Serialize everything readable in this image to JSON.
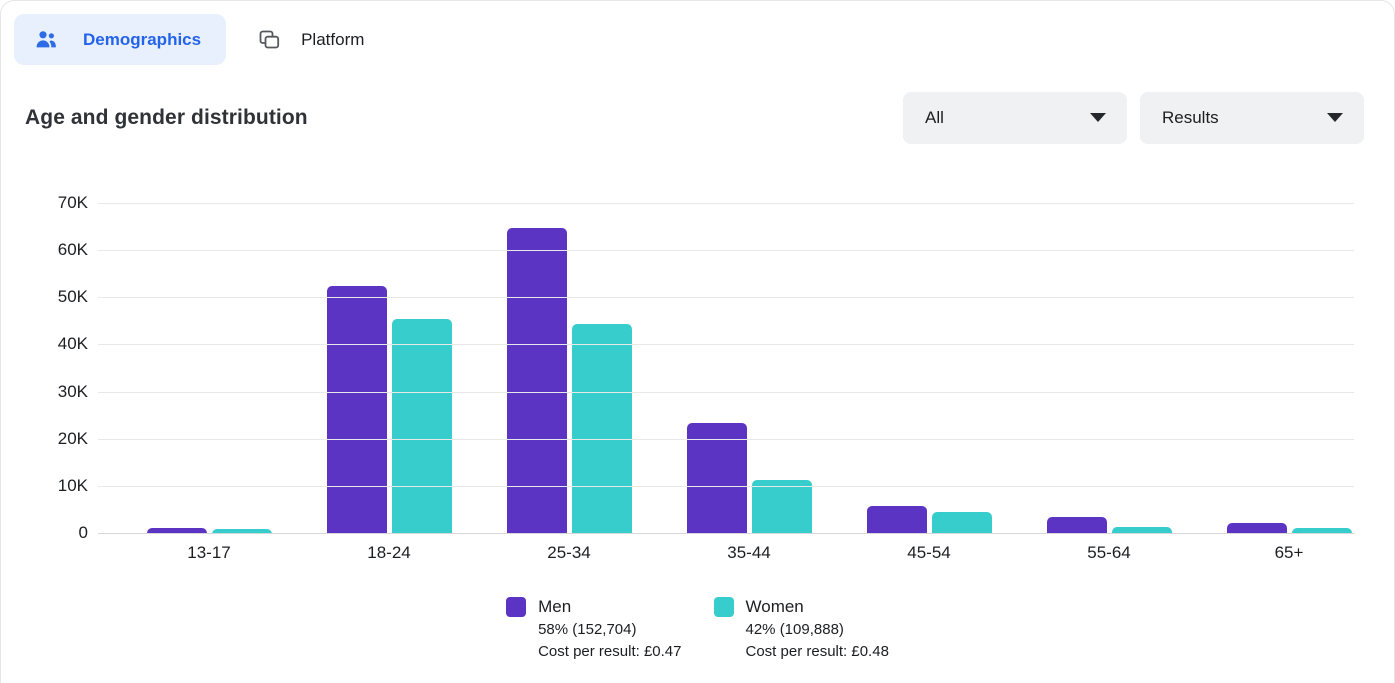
{
  "tabs": [
    {
      "label": "Demographics",
      "active": true
    },
    {
      "label": "Platform",
      "active": false
    }
  ],
  "header": {
    "title": "Age and gender distribution"
  },
  "filters": [
    {
      "value": "All"
    },
    {
      "value": "Results"
    }
  ],
  "chart_data": {
    "type": "bar",
    "categories": [
      "13-17",
      "18-24",
      "25-34",
      "35-44",
      "45-54",
      "55-64",
      "65+"
    ],
    "series": [
      {
        "name": "Men",
        "color": "#5c34c4",
        "values": [
          1300,
          52500,
          65000,
          23500,
          6000,
          3500,
          2300
        ]
      },
      {
        "name": "Women",
        "color": "#38cdcd",
        "values": [
          1100,
          45500,
          44500,
          11500,
          4700,
          1500,
          1200
        ]
      }
    ],
    "ylim": [
      0,
      70000
    ],
    "yticks": [
      "0",
      "10K",
      "20K",
      "30K",
      "40K",
      "50K",
      "60K",
      "70K"
    ],
    "grid": true,
    "legend_position": "bottom"
  },
  "legend": {
    "men": {
      "label": "Men",
      "share": "58% (152,704)",
      "cost": "Cost per result: £0.47",
      "color": "#5c34c4"
    },
    "women": {
      "label": "Women",
      "share": "42% (109,888)",
      "cost": "Cost per result: £0.48",
      "color": "#38cdcd"
    }
  },
  "colors": {
    "accent_blue": "#2463eb",
    "active_tab_bg": "#e8f0fe",
    "dropdown_bg": "#f0f1f2",
    "men_bar": "#5c34c4",
    "women_bar": "#38cdcd"
  }
}
